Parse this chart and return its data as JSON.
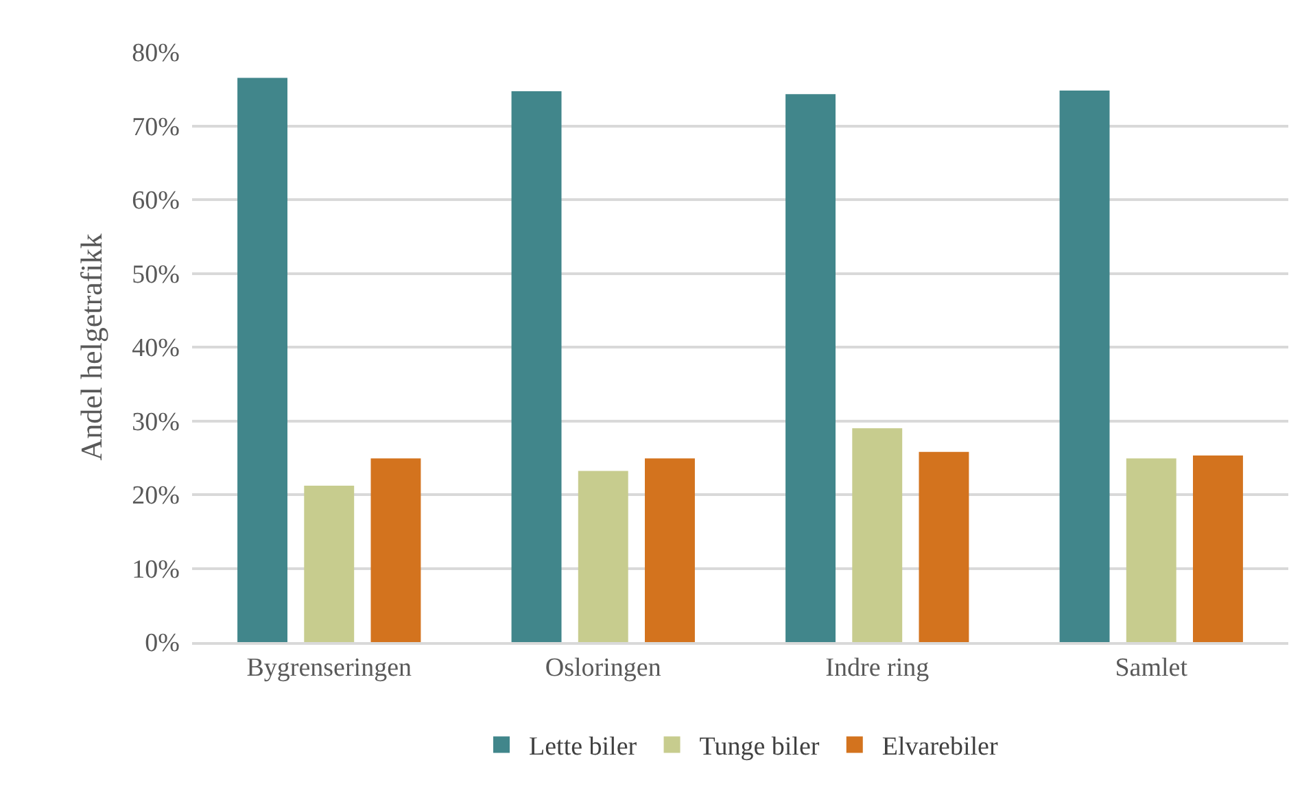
{
  "chart_data": {
    "type": "bar",
    "ylabel": "Andel helgetrafikk",
    "categories": [
      "Bygrenseringen",
      "Osloringen",
      "Indre ring",
      "Samlet"
    ],
    "series": [
      {
        "name": "Lette biler",
        "color": "#41868b",
        "values": [
          76.5,
          74.7,
          74.3,
          74.8
        ]
      },
      {
        "name": "Tunge biler",
        "color": "#c7cc8e",
        "values": [
          21.2,
          23.2,
          29.0,
          24.9
        ]
      },
      {
        "name": "Elvarebiler",
        "color": "#d3731e",
        "values": [
          24.9,
          24.9,
          25.8,
          25.3
        ]
      }
    ],
    "ylim": [
      0,
      80
    ],
    "yticks": [
      {
        "value": 0,
        "label": "0%"
      },
      {
        "value": 10,
        "label": "10%"
      },
      {
        "value": 20,
        "label": "20%"
      },
      {
        "value": 30,
        "label": "30%"
      },
      {
        "value": 40,
        "label": "40%"
      },
      {
        "value": 50,
        "label": "50%"
      },
      {
        "value": 60,
        "label": "60%"
      },
      {
        "value": 70,
        "label": "70%"
      },
      {
        "value": 80,
        "label": "80%"
      }
    ],
    "grid": "y",
    "legend": "bottom"
  }
}
